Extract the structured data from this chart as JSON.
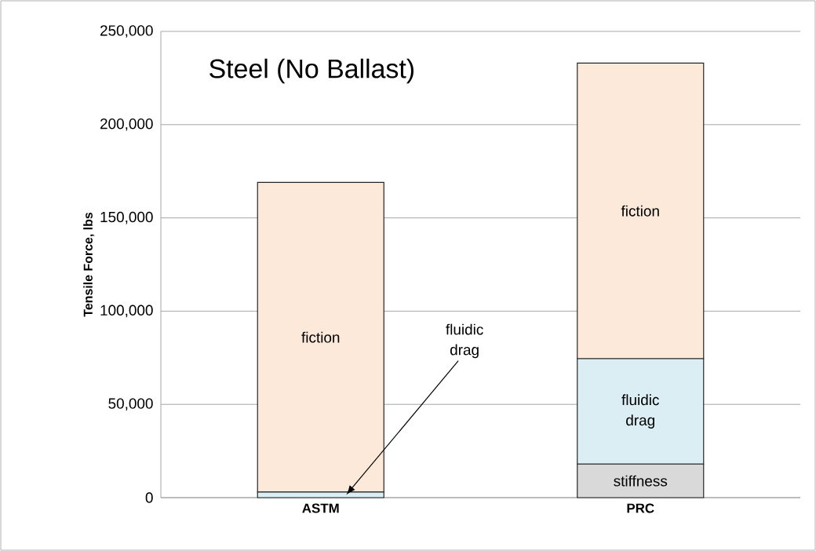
{
  "chart_data": {
    "type": "bar",
    "stacked": true,
    "title": "Steel (No Ballast)",
    "ylabel": "Tensile Force, lbs",
    "categories": [
      "ASTM",
      "PRC"
    ],
    "series": [
      {
        "name": "stiffness",
        "color": "#d9d9d9",
        "values": [
          0,
          18000
        ]
      },
      {
        "name": "fluidic drag",
        "color": "#dbeef4",
        "values": [
          3000,
          56500
        ]
      },
      {
        "name": "fiction",
        "color": "#fde9d9",
        "values": [
          166000,
          158500
        ]
      }
    ],
    "ylim": [
      0,
      250000
    ],
    "yticks": [
      {
        "value": 0,
        "label": "0"
      },
      {
        "value": 50000,
        "label": "50,000"
      },
      {
        "value": 100000,
        "label": "100,000"
      },
      {
        "value": 150000,
        "label": "150,000"
      },
      {
        "value": 200000,
        "label": "200,000"
      },
      {
        "value": 250000,
        "label": "250,000"
      }
    ],
    "grid": "y",
    "annotations": [
      "fiction",
      "fluidic drag"
    ]
  }
}
